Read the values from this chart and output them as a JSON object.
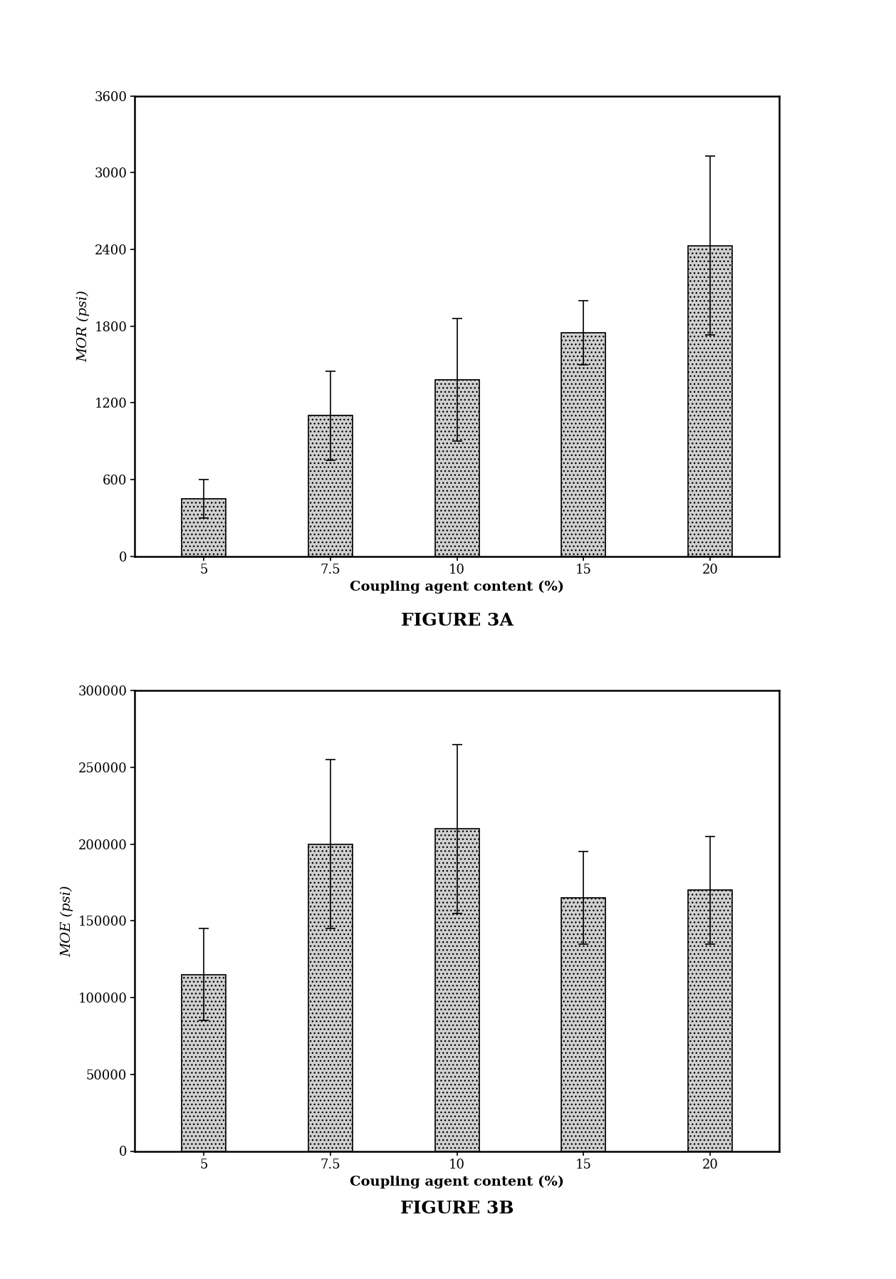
{
  "fig3a": {
    "title": "FIGURE 3A",
    "categories": [
      "5",
      "7.5",
      "10",
      "15",
      "20"
    ],
    "values": [
      450,
      1100,
      1380,
      1750,
      2430
    ],
    "errors": [
      150,
      350,
      480,
      250,
      700
    ],
    "ylabel": "MOR (psi)",
    "xlabel": "Coupling agent content (%)",
    "ylim": [
      0,
      3600
    ],
    "yticks": [
      0,
      600,
      1200,
      1800,
      2400,
      3000,
      3600
    ]
  },
  "fig3b": {
    "title": "FIGURE 3B",
    "categories": [
      "5",
      "7.5",
      "10",
      "15",
      "20"
    ],
    "values": [
      115000,
      200000,
      210000,
      165000,
      170000
    ],
    "errors": [
      30000,
      55000,
      55000,
      30000,
      35000
    ],
    "ylabel": "MOE (psi)",
    "xlabel": "Coupling agent content (%)",
    "ylim": [
      0,
      300000
    ],
    "yticks": [
      0,
      50000,
      100000,
      150000,
      200000,
      250000,
      300000
    ]
  },
  "bar_color": "#d0d0d0",
  "bar_edgecolor": "#000000",
  "bar_hatch": "...",
  "background_color": "#ffffff",
  "title_fontsize": 18,
  "label_fontsize": 14,
  "tick_fontsize": 13
}
